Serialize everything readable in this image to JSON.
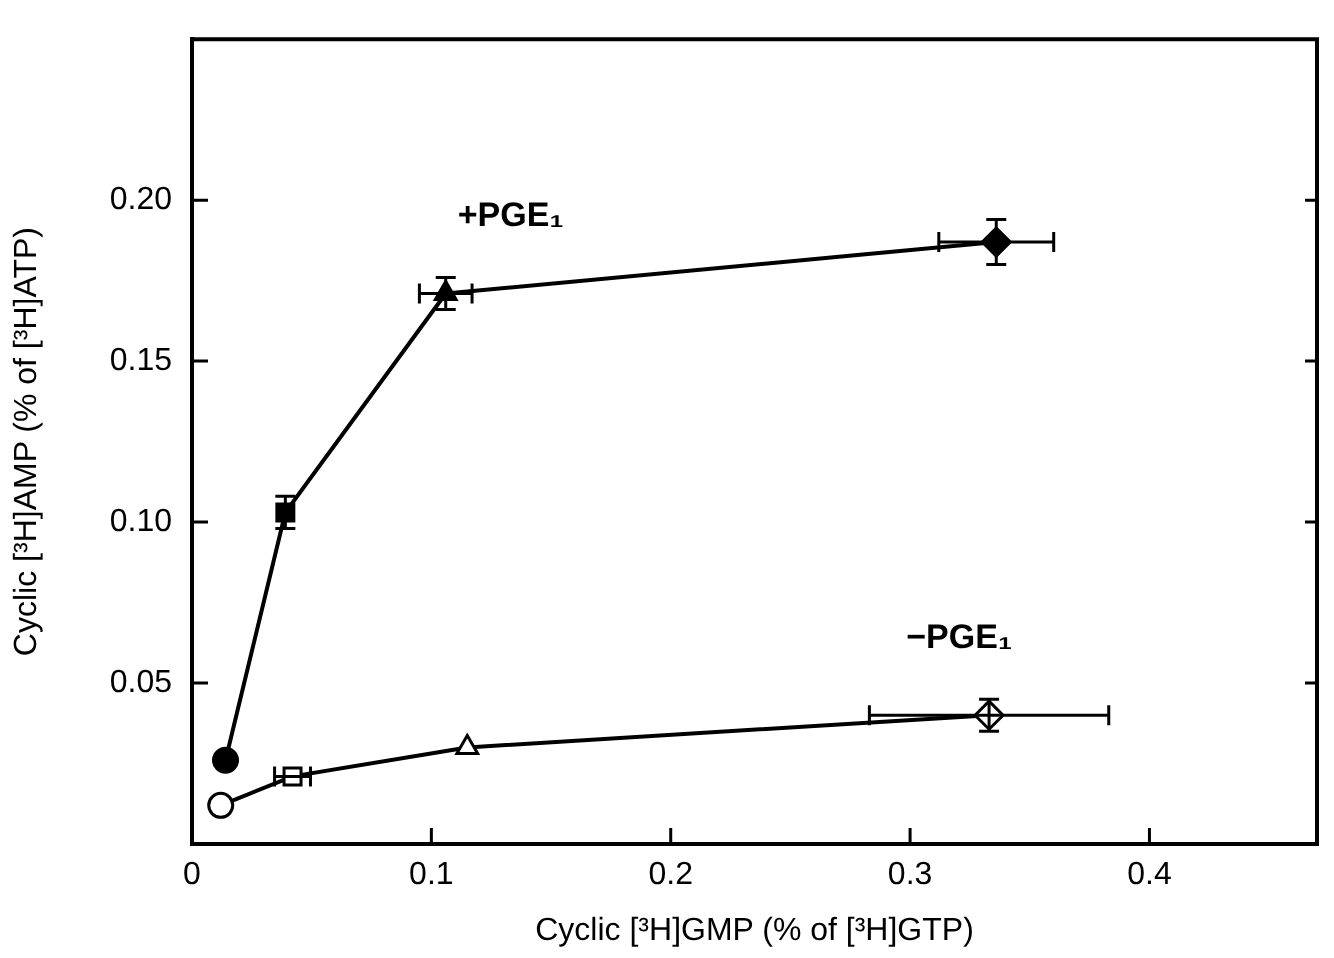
{
  "chart_data": {
    "type": "line",
    "xlabel": "Cyclic [³H]GMP (% of [³H]GTP)",
    "ylabel": "Cyclic [³H]AMP (% of [³H]ATP)",
    "xlim": [
      0,
      0.47
    ],
    "ylim": [
      0,
      0.25
    ],
    "xticks": [
      0,
      0.1,
      0.2,
      0.3,
      0.4
    ],
    "yticks": [
      0.05,
      {
        "value": 0.1,
        "label": "0.10"
      },
      0.15,
      {
        "value": 0.2,
        "label": "0.20"
      }
    ],
    "grid": false,
    "legend": false,
    "line_style": "solid",
    "series": [
      {
        "name": "+PGE₁",
        "color": "#000000",
        "colors": [
          "#000000",
          "#000000",
          "#000000",
          "#000000"
        ],
        "marker": [
          "circle",
          "square",
          "triangle",
          "diamond"
        ],
        "x": [
          0.014,
          0.039,
          0.106,
          0.336
        ],
        "values": [
          0.026,
          0.103,
          0.171,
          0.187
        ],
        "errors": [
          null,
          0.005,
          0.005,
          0.007
        ],
        "xerrors": [
          null,
          null,
          0.011,
          0.024
        ]
      },
      {
        "name": "−PGE₁",
        "color": "#000000",
        "colors": [
          "#ffffff",
          "#ffffff",
          "#ffffff",
          "#ffffff"
        ],
        "marker": [
          "circle",
          "square",
          "triangle",
          "diamond"
        ],
        "x": [
          0.012,
          0.042,
          0.115,
          0.333
        ],
        "values": [
          0.012,
          0.021,
          0.03,
          0.04
        ],
        "errors": [
          null,
          null,
          null,
          0.005
        ],
        "xerrors": [
          null,
          0.0075,
          null,
          0.05
        ]
      }
    ]
  }
}
